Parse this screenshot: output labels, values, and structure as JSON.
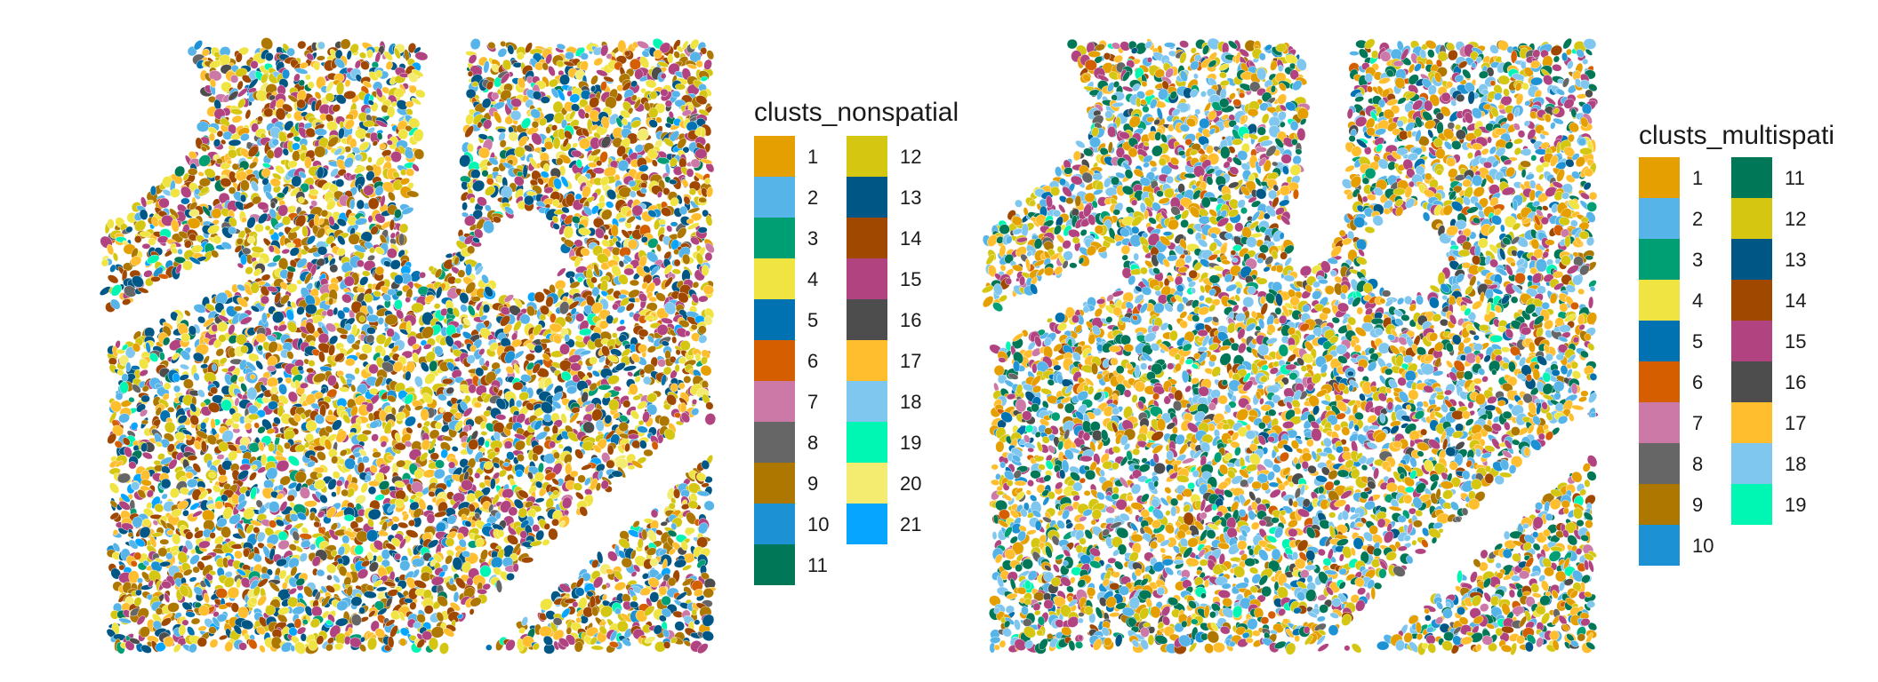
{
  "chart_data": [
    {
      "type": "scatter",
      "subtype": "spatial-cell-map",
      "title": "",
      "xlabel": "",
      "ylabel": "",
      "axes_visible": false,
      "grid": false,
      "legend_title": "clusts_nonspatial",
      "legend_position": "right",
      "legend_columns": 2,
      "categories": [
        "1",
        "2",
        "3",
        "4",
        "5",
        "6",
        "7",
        "8",
        "9",
        "10",
        "11",
        "12",
        "13",
        "14",
        "15",
        "16",
        "17",
        "18",
        "19",
        "20",
        "21"
      ],
      "colors": [
        "#E69F00",
        "#56B4E9",
        "#009E73",
        "#F0E442",
        "#0072B2",
        "#D55E00",
        "#CC79A7",
        "#666666",
        "#AD7700",
        "#1C91D4",
        "#007756",
        "#D5C711",
        "#005685",
        "#A04700",
        "#B14380",
        "#4D4D4D",
        "#FFBE2D",
        "#80C7EF",
        "#00F6B3",
        "#F4EB71",
        "#06A5FF"
      ],
      "dominant_categories": [
        "14",
        "4",
        "12",
        "13",
        "9",
        "17",
        "15",
        "2"
      ]
    },
    {
      "type": "scatter",
      "subtype": "spatial-cell-map",
      "title": "",
      "xlabel": "",
      "ylabel": "",
      "axes_visible": false,
      "grid": false,
      "legend_title": "clusts_multispati",
      "legend_position": "right",
      "legend_columns": 2,
      "categories": [
        "1",
        "2",
        "3",
        "4",
        "5",
        "6",
        "7",
        "8",
        "9",
        "10",
        "11",
        "12",
        "13",
        "14",
        "15",
        "16",
        "17",
        "18",
        "19"
      ],
      "colors": [
        "#E69F00",
        "#56B4E9",
        "#009E73",
        "#F0E442",
        "#0072B2",
        "#D55E00",
        "#CC79A7",
        "#666666",
        "#AD7700",
        "#1C91D4",
        "#007756",
        "#D5C711",
        "#005685",
        "#A04700",
        "#B14380",
        "#4D4D4D",
        "#FFBE2D",
        "#80C7EF",
        "#00F6B3"
      ],
      "dominant_categories": [
        "17",
        "2",
        "11",
        "12",
        "1",
        "15",
        "18"
      ]
    }
  ]
}
